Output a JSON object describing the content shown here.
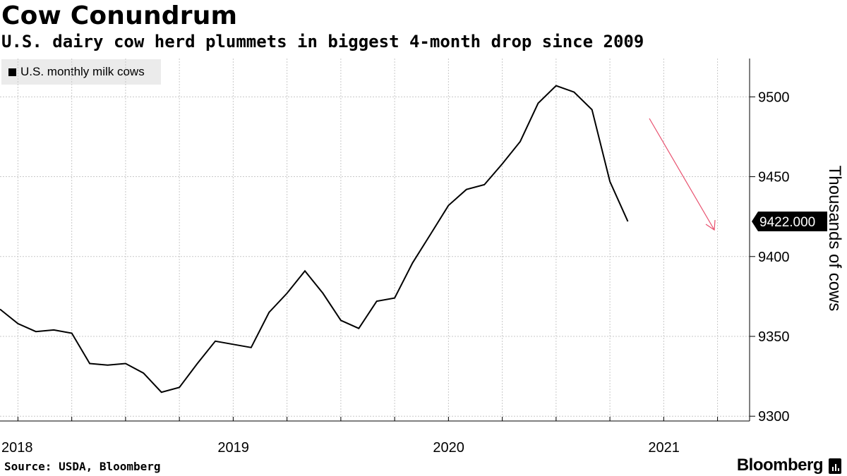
{
  "title": "Cow Conundrum",
  "subtitle": "U.S. dairy cow herd plummets in biggest 4-month drop since 2009",
  "source": "Source: USDA, Bloomberg",
  "brand": "Bloomberg",
  "legend": [
    {
      "label": "U.S. monthly milk cows",
      "color": "#000000"
    }
  ],
  "colors": {
    "line": "#000000",
    "arrow": "#e8506e",
    "grid": "#c8c8c8",
    "legend_bg": "#ebebeb"
  },
  "chart_data": {
    "type": "line",
    "title": "Cow Conundrum",
    "subtitle": "U.S. dairy cow herd plummets in biggest 4-month drop since 2009",
    "ylabel": "Thousands of cows",
    "ylim": [
      9297,
      9524
    ],
    "yticks": [
      9300,
      9350,
      9400,
      9450,
      9500
    ],
    "y_axis_side": "right",
    "xticks": [
      "2018",
      "2019",
      "2020",
      "2021"
    ],
    "grid": true,
    "legend_position": "top-left",
    "last_value_label": "9422.000",
    "annotation": "downward arrow",
    "series": [
      {
        "name": "U.S. monthly milk cows",
        "x": [
          "2017-12",
          "2018-01",
          "2018-02",
          "2018-03",
          "2018-04",
          "2018-05",
          "2018-06",
          "2018-07",
          "2018-08",
          "2018-09",
          "2018-10",
          "2018-11",
          "2018-12",
          "2019-01",
          "2019-02",
          "2019-03",
          "2019-04",
          "2019-05",
          "2019-06",
          "2019-07",
          "2019-08",
          "2019-09",
          "2019-10",
          "2019-11",
          "2019-12",
          "2020-01",
          "2020-02",
          "2020-03",
          "2020-04",
          "2020-05",
          "2020-06",
          "2020-07",
          "2020-08",
          "2020-09",
          "2020-10",
          "2020-11",
          "2020-12",
          "2021-01",
          "2021-02",
          "2021-03",
          "2021-04",
          "2021-05"
        ],
        "values": [
          9367,
          9358,
          9353,
          9354,
          9352,
          9333,
          9332,
          9333,
          9327,
          9315,
          9318,
          9333,
          9347,
          9345,
          9343,
          9365,
          9377,
          9391,
          9377,
          9360,
          9355,
          9372,
          9374,
          9396,
          9414,
          9432,
          9442,
          9445,
          9458,
          9472,
          9496,
          9507,
          9503,
          9492,
          9447,
          9422,
          null,
          null,
          null,
          null,
          null,
          null
        ]
      }
    ]
  }
}
